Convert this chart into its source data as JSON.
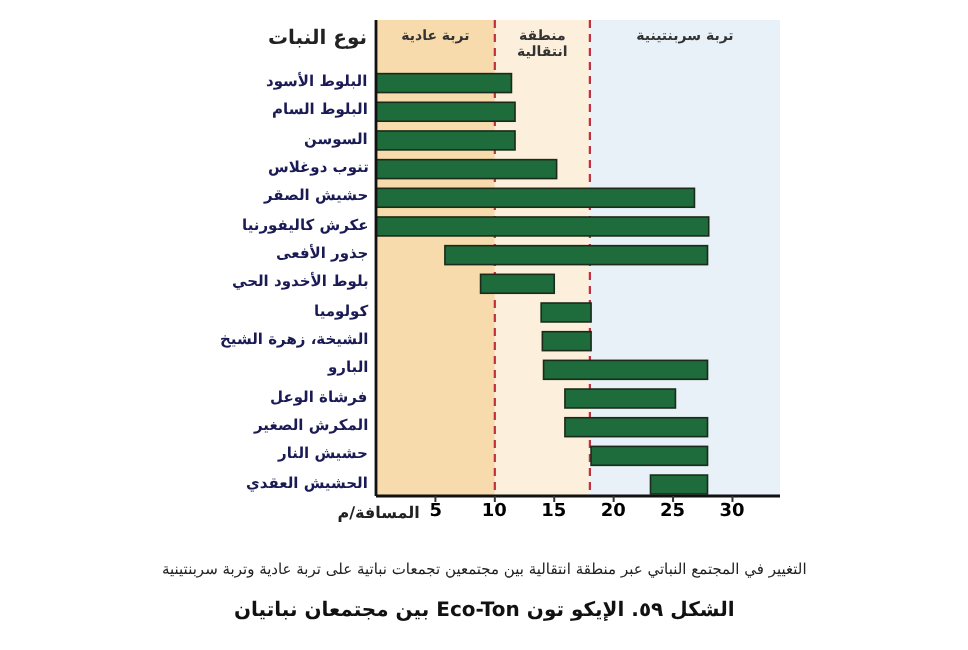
{
  "chart_data": {
    "type": "bar",
    "orientation": "horizontal",
    "title": "الشكل ٥٩. الإيكو تون Eco-Ton بين مجتمعان نباتيان",
    "xlabel": "المسافة/م",
    "ylabel": "نوع النبات",
    "annotations": [
      "التغيير في المجتمع النباتي عبر منطقة انتقالية بين مجتمعين تجمعات نباتية على تربة عادية وتربة سربنتينية"
    ],
    "categories": [
      "البلوط الأسود",
      "البلوط السام",
      "السوسن",
      "تنوب دوغلاس",
      "حشيش الصقر",
      "عكرش كاليفورنيا",
      "جذور الأفعى",
      "بلوط الأخدود الحي",
      "كولوميا",
      "الشيخة، زهرة الشيخ",
      "البارو",
      "فرشاة الوعل",
      "المكرش الصغير",
      "حشيش النار",
      "الحشيش العقدي"
    ],
    "base": [
      0,
      0,
      0,
      0,
      0,
      0,
      5.8,
      8.8,
      13.9,
      14,
      14.1,
      15.9,
      15.9,
      18.1,
      23.1
    ],
    "values": [
      11.4,
      11.7,
      11.7,
      15.2,
      26.8,
      28,
      22.1,
      6.2,
      4.2,
      4.1,
      13.8,
      9.3,
      12,
      9.8,
      4.8
    ],
    "color": "#1e6b3c",
    "xlim": [
      0,
      34
    ],
    "xticks": [
      5,
      10,
      15,
      20,
      25,
      30
    ],
    "bands": [
      {
        "axis": "x",
        "from": 0,
        "to": 10,
        "label": "تربة عادية",
        "color": "#f8dbac"
      },
      {
        "axis": "x",
        "from": 10,
        "to": 18,
        "label": "منطقة انتقالية",
        "color": "#fcefdc"
      },
      {
        "axis": "x",
        "from": 18,
        "to": 34,
        "label": "تربة سربنتينية",
        "color": "#e8f0f8"
      }
    ],
    "ref_lines": [
      {
        "axis": "x",
        "value": 10,
        "color": "#c03040",
        "line_style": "dashed"
      },
      {
        "axis": "x",
        "value": 18,
        "color": "#c03040",
        "line_style": "dashed"
      }
    ],
    "grid": false
  }
}
